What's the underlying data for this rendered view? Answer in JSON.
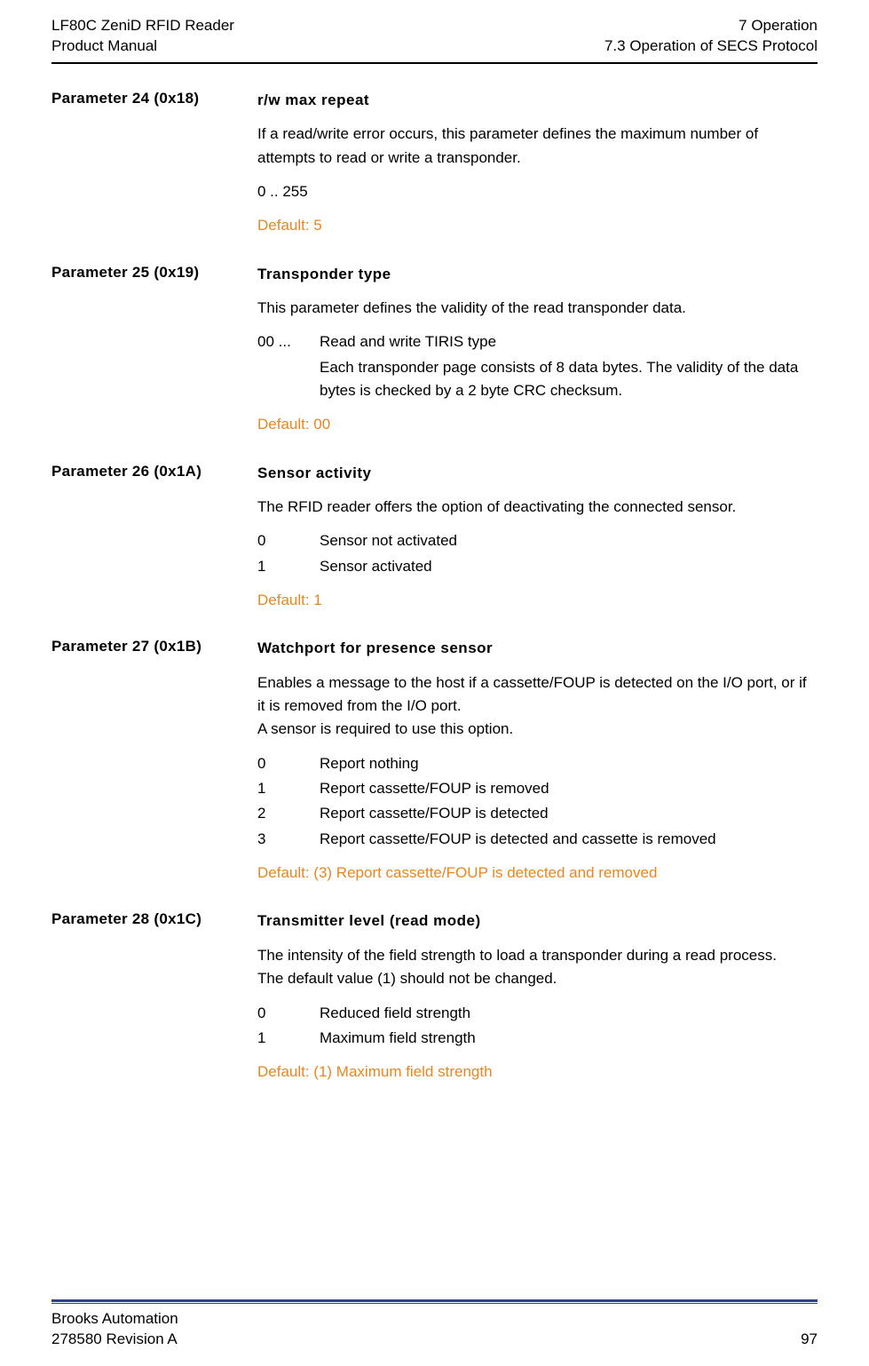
{
  "header": {
    "left_line1": "LF80C ZeniD RFID Reader",
    "left_line2": "Product Manual",
    "right_line1": "7 Operation",
    "right_line2": "7.3 Operation of SECS Protocol"
  },
  "params": [
    {
      "label": "Parameter 24 (0x18)",
      "title": "r/w max repeat",
      "desc1": "If a read/write error occurs, this parameter defines the maximum number of attempts to read or write a transponder.",
      "desc2": "0 .. 255",
      "default": "Default: 5"
    },
    {
      "label": "Parameter 25 (0x19)",
      "title": "Transponder type",
      "desc1": "This parameter defines the validity of the read transponder data.",
      "defs": [
        {
          "k": "00 ...",
          "v": "Read and write TIRIS type"
        },
        {
          "k": "",
          "v": "Each transponder page consists of 8 data bytes. The validity of the data bytes is checked by a 2 byte CRC checksum."
        }
      ],
      "default": "Default: 00"
    },
    {
      "label": "Parameter 26 (0x1A)",
      "title": "Sensor activity",
      "desc1": "The RFID reader offers the option of deactivating the connected sensor.",
      "defs": [
        {
          "k": "0",
          "v": "Sensor not activated"
        },
        {
          "k": "1",
          "v": "Sensor activated"
        }
      ],
      "default": "Default: 1"
    },
    {
      "label": "Parameter 27 (0x1B)",
      "title": "Watchport for presence sensor",
      "desc_lines": [
        "Enables a message to the host if a cassette/FOUP is detected on the I/O port, or if it is removed from the I/O port.",
        "A sensor is required to use this option."
      ],
      "defs": [
        {
          "k": "0",
          "v": "Report nothing"
        },
        {
          "k": "1",
          "v": "Report cassette/FOUP is removed"
        },
        {
          "k": "2",
          "v": "Report cassette/FOUP is detected"
        },
        {
          "k": "3",
          "v": "Report cassette/FOUP is detected and cassette is removed"
        }
      ],
      "default": "Default: (3) Report cassette/FOUP is detected and removed"
    },
    {
      "label": "Parameter 28 (0x1C)",
      "title": "Transmitter level (read mode)",
      "desc_lines": [
        "The intensity of the field strength to load a transponder during a read process.",
        "The default value (1) should not be changed."
      ],
      "defs": [
        {
          "k": "0",
          "v": "Reduced field strength"
        },
        {
          "k": "1",
          "v": "Maximum field strength"
        }
      ],
      "default": "Default: (1) Maximum field strength"
    }
  ],
  "footer": {
    "left_line1": "Brooks Automation",
    "left_line2": "278580 Revision A",
    "page_number": "97"
  }
}
